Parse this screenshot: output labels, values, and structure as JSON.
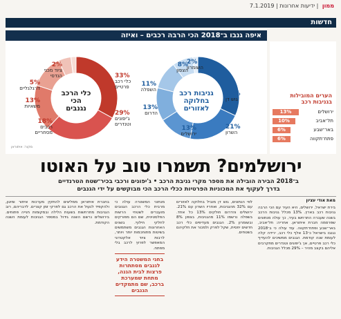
{
  "header": {
    "date": "7.1.2019",
    "sep": "|",
    "paper": "ידיעות אחרונות",
    "section_prefix": "ממון",
    "section_title": "חדשות"
  },
  "infographic": {
    "title": "איפה גנבו ב־2018 הכי הרבה רכבים – ואיזה",
    "left_donut": {
      "center": [
        "כלי הרכב",
        "הכי",
        "נגנבים"
      ],
      "items": [
        {
          "pct": "33%",
          "label": [
            "כלי רכב",
            "פרטיים"
          ],
          "color": "#c0392b"
        },
        {
          "pct": "29%",
          "label": [
            "ג'יפונים",
            "וטנדרים"
          ],
          "color": "#d9534f"
        },
        {
          "pct": "18%",
          "label": [
            "רכבים",
            "מסחריים"
          ],
          "color": "#e07a6a"
        },
        {
          "pct": "13%",
          "label": [
            "משאיות"
          ],
          "color": "#e9a192"
        },
        {
          "pct": "5%",
          "label": [
            "דו־גלגליים"
          ],
          "color": "#f0c2b8"
        },
        {
          "pct": "2%",
          "label": [
            "ציוד מכני",
            "הנדסי"
          ],
          "color": "#f7dcd5"
        }
      ]
    },
    "right_donut": {
      "center": [
        "גניבות רכב",
        "בחלוקה",
        "לאזורים"
      ],
      "items": [
        {
          "pct": "32%",
          "label": [
            "גוש דן"
          ],
          "color": "#1f5d9e"
        },
        {
          "pct": "21%",
          "label": [
            "השרון"
          ],
          "color": "#3a7bc0"
        },
        {
          "pct": "13%",
          "label": [
            "ירושלים"
          ],
          "color": "#5b95d1"
        },
        {
          "pct": "13%",
          "label": [
            "הדרום"
          ],
          "color": "#80afdd"
        },
        {
          "pct": "11%",
          "label": [
            "השפלה"
          ],
          "color": "#a5c7e8"
        },
        {
          "pct": "8%",
          "label": [
            "הצפון"
          ],
          "color": "#c7ddf2"
        },
        {
          "pct": "2%",
          "label": [
            "השומרון"
          ],
          "color": "#e3eef9"
        }
      ]
    },
    "cities": {
      "title": [
        "הערים המובילות",
        "בגניבות רכב"
      ],
      "items": [
        {
          "name": "ירושלים",
          "pct": "13%",
          "value": 13
        },
        {
          "name": "תל־אביב",
          "pct": "10%",
          "value": 10
        },
        {
          "name": "באר־שבע",
          "pct": "6%",
          "value": 6
        },
        {
          "name": "פתח־תקווה",
          "pct": "6%",
          "value": 6
        }
      ]
    },
    "source": "מקור: איתוראן"
  },
  "article": {
    "headline": "ירושלמים? תשמרו טוב על האוטו",
    "subhead": [
      "ב־2018 הבירה הובילה את מספר מקרי גניבת הרכב • ג'יפונים ורכבי בכיר־שטח הטרנדיים",
      "בדרך לעקוף את המכוניות הפרטיות ככלי הרכב הכי מבוקשים על ידי הגנבים"
    ],
    "byline": "מאת אודי עציון",
    "col1": "בירת ישראל, ירושלים, היא העיר עם הכי הרבה גניבות רכב בארץ. 13% מכלל גניבות הרכב בשנה שעברה התרחשו בעיר, כך עולה מנתונים שפרסמה חברת איתוראן. אחריה: תל־אביב, באר־שבע ופתח־תקווה. עוד עולה כי ב־2018 נגנבו בישראל כ־13 אלף כלי רכב, ירידה קלה לעומת שנה קודמת. הגנבים ממשיכים להעדיף כלי רכב פרטיים, אך ג'יפונים וטנדרים מתקרבים אליהם בקצב מהיר – 29% מכלל הגניבות.",
    "col2": "לפי הנתונים, גוש דן מוביל בחלוקה לאזורים עם 32% מהגניבות, ואחריו השרון עם 21%. ירושלים והדרום חולקים 13% כל אחד. בשפלה נרשמו 11% מהגניבות, בצפון 8% ובשומרון 2%. הגנבים מעדיפים כלי רכב חדשים יחסית, שקל לפרק ולמכור את חלקיהם בשטחים.",
    "pullquote": "בחגי המשטרה הידע לגנבים מסתתרות פרצות לבית הגנה, מתחת שמערכת ברכב, שם מתמקדים הגנבים",
    "col3": "מנתוני המשטרה עולה כי מרבית כלי הרכב הגנובים מועברים לשטחי הרשות הפלסטינית, שם הם מפורקים לחלקי חילוף. בשנים האחרונות הגנבים משתמשים בשיטות מתוחכמות יותר ויותר, לרבות ציוד אלקטרוני המאפשר לפרוץ לרכב בלי מפתח.",
    "col4": "בחברת איתוראן ממליצים להתקין מערכות איתור ומיגון, ולהקפיד לנעול את הרכב גם לפרקי זמן קצרים. לדבריהם, רוב הגניבות מתרחשות בשעות הלילה ובמקומות חנייה פתוחים. בירושלים נרשם השנה גידול במספר הגניבות לעומת השנה הקודמת."
  }
}
